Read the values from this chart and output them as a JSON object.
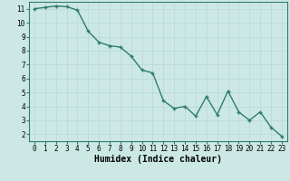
{
  "x": [
    0,
    1,
    2,
    3,
    4,
    5,
    6,
    7,
    8,
    9,
    10,
    11,
    12,
    13,
    14,
    15,
    16,
    17,
    18,
    19,
    20,
    21,
    22,
    23
  ],
  "y": [
    11.0,
    11.1,
    11.2,
    11.15,
    10.9,
    9.4,
    8.6,
    8.35,
    8.25,
    7.6,
    6.6,
    6.4,
    4.4,
    3.85,
    4.0,
    3.3,
    4.7,
    3.4,
    5.1,
    3.6,
    3.0,
    3.6,
    2.5,
    1.85
  ],
  "line_color": "#2e7d6e",
  "marker": "+",
  "marker_color": "#2e7d6e",
  "bg_color": "#cce8e4",
  "grid_color": "#b8d8d4",
  "xlabel": "Humidex (Indice chaleur)",
  "xlim": [
    -0.5,
    23.5
  ],
  "ylim": [
    1.5,
    11.5
  ],
  "yticks": [
    2,
    3,
    4,
    5,
    6,
    7,
    8,
    9,
    10,
    11
  ],
  "xticks": [
    0,
    1,
    2,
    3,
    4,
    5,
    6,
    7,
    8,
    9,
    10,
    11,
    12,
    13,
    14,
    15,
    16,
    17,
    18,
    19,
    20,
    21,
    22,
    23
  ],
  "tick_label_fontsize": 5.5,
  "xlabel_fontsize": 7,
  "linewidth": 1.0,
  "markersize": 3.5
}
